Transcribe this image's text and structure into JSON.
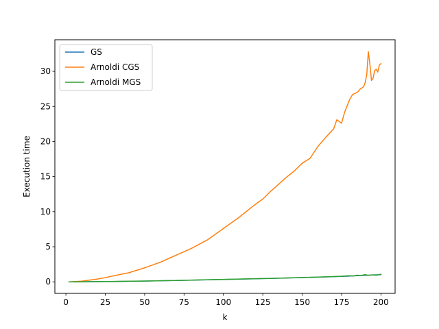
{
  "chart_data": {
    "type": "line",
    "title": "",
    "xlabel": "k",
    "ylabel": "Execution time",
    "xlim": [
      -7,
      209
    ],
    "ylim": [
      -1.64,
      34.5
    ],
    "xticks": [
      0,
      25,
      50,
      75,
      100,
      125,
      150,
      175,
      200
    ],
    "yticks": [
      0,
      5,
      10,
      15,
      20,
      25,
      30
    ],
    "grid": false,
    "legend": "upper-left",
    "series": [
      {
        "name": "GS",
        "color": "#1f77b4",
        "x": [
          2,
          10,
          20,
          30,
          40,
          50,
          60,
          70,
          80,
          90,
          100,
          110,
          120,
          130,
          140,
          150,
          160,
          170,
          180,
          185,
          190,
          195,
          200
        ],
        "y": [
          0.0,
          0.01,
          0.03,
          0.05,
          0.08,
          0.11,
          0.15,
          0.19,
          0.24,
          0.29,
          0.34,
          0.39,
          0.44,
          0.49,
          0.55,
          0.61,
          0.67,
          0.74,
          0.82,
          0.88,
          0.93,
          0.98,
          1.02
        ]
      },
      {
        "name": "Arnoldi CGS",
        "color": "#ff7f0e",
        "x": [
          2,
          10,
          20,
          25,
          30,
          40,
          50,
          60,
          70,
          80,
          90,
          100,
          110,
          120,
          125,
          130,
          140,
          145,
          150,
          155,
          160,
          165,
          170,
          172,
          175,
          177,
          180,
          182,
          185,
          187,
          189,
          190,
          191,
          192,
          193,
          194,
          195,
          196,
          197,
          198,
          199,
          200
        ],
        "y": [
          0.0,
          0.1,
          0.4,
          0.6,
          0.85,
          1.3,
          2.0,
          2.8,
          3.8,
          4.8,
          6.0,
          7.6,
          9.2,
          11.0,
          11.8,
          12.9,
          14.9,
          15.8,
          16.9,
          17.6,
          19.3,
          20.6,
          21.8,
          23.1,
          22.6,
          24.2,
          25.9,
          26.7,
          27.0,
          27.5,
          27.8,
          28.4,
          29.5,
          32.8,
          31.0,
          28.7,
          29.0,
          30.1,
          30.3,
          29.9,
          30.9,
          31.1
        ]
      },
      {
        "name": "Arnoldi MGS",
        "color": "#2ca02c",
        "x": [
          2,
          10,
          20,
          30,
          40,
          50,
          60,
          70,
          80,
          90,
          100,
          110,
          120,
          130,
          140,
          150,
          160,
          170,
          175,
          180,
          182,
          185,
          187,
          190,
          192,
          195,
          197,
          200
        ],
        "y": [
          0.0,
          0.01,
          0.03,
          0.06,
          0.09,
          0.12,
          0.16,
          0.2,
          0.25,
          0.3,
          0.35,
          0.4,
          0.45,
          0.5,
          0.56,
          0.62,
          0.68,
          0.75,
          0.8,
          0.88,
          0.83,
          0.95,
          0.9,
          1.02,
          0.93,
          1.0,
          0.95,
          1.08
        ]
      }
    ]
  }
}
